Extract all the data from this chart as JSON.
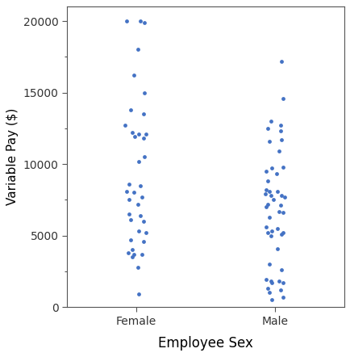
{
  "female_pay": [
    20000,
    20000,
    19900,
    18000,
    16200,
    15000,
    13800,
    13500,
    12700,
    12200,
    12100,
    12100,
    11900,
    11800,
    10500,
    10200,
    8600,
    8500,
    8100,
    8000,
    7700,
    7500,
    7200,
    6500,
    6400,
    6100,
    6000,
    5300,
    5200,
    4700,
    4600,
    4000,
    3800,
    3700,
    3700,
    3500,
    2800,
    900
  ],
  "male_pay": [
    17200,
    14600,
    13000,
    12700,
    12500,
    12300,
    11700,
    11600,
    10900,
    9800,
    9700,
    9500,
    9300,
    8800,
    8200,
    8100,
    8100,
    7900,
    7800,
    7800,
    7700,
    7500,
    7200,
    7100,
    7000,
    6700,
    6600,
    6300,
    5600,
    5500,
    5300,
    5200,
    5200,
    5100,
    5000,
    4100,
    3000,
    2600,
    1900,
    1800,
    1800,
    1700,
    1700,
    1300,
    1200,
    1000,
    700,
    500
  ],
  "dot_color": "#4472C4",
  "dot_size": 12,
  "xlabel": "Employee Sex",
  "ylabel": "Variable Pay ($)",
  "ylim": [
    0,
    21000
  ],
  "yticks": [
    0,
    5000,
    10000,
    15000,
    20000
  ],
  "ytick_labels": [
    "0",
    "5000",
    "10000",
    "15000",
    "20000"
  ],
  "categories": [
    "Female",
    "Male"
  ],
  "bg_color": "#ffffff",
  "xlabel_fontsize": 12,
  "ylabel_fontsize": 11,
  "tick_fontsize": 10,
  "jitter_female": [
    -0.07,
    0.03,
    0.06,
    0.01,
    -0.02,
    0.06,
    -0.04,
    0.05,
    -0.08,
    -0.03,
    0.02,
    0.07,
    -0.01,
    0.05,
    0.06,
    0.02,
    -0.05,
    0.03,
    -0.07,
    -0.02,
    0.04,
    -0.05,
    0.01,
    -0.05,
    0.03,
    -0.04,
    0.05,
    0.02,
    0.07,
    -0.04,
    0.05,
    -0.03,
    -0.06,
    -0.02,
    0.04,
    -0.03,
    0.01,
    0.02
  ],
  "jitter_male": [
    0.05,
    0.06,
    -0.03,
    0.04,
    -0.05,
    0.04,
    0.05,
    -0.04,
    0.03,
    0.06,
    -0.02,
    -0.06,
    0.01,
    -0.05,
    -0.06,
    -0.04,
    0.02,
    -0.07,
    0.05,
    -0.03,
    0.07,
    -0.01,
    -0.05,
    0.04,
    -0.06,
    0.03,
    0.06,
    -0.04,
    -0.06,
    0.02,
    -0.02,
    0.06,
    -0.05,
    0.05,
    -0.03,
    0.02,
    -0.04,
    0.05,
    -0.06,
    0.03,
    -0.03,
    0.06,
    -0.02,
    -0.05,
    0.04,
    -0.04,
    0.06,
    -0.02
  ]
}
